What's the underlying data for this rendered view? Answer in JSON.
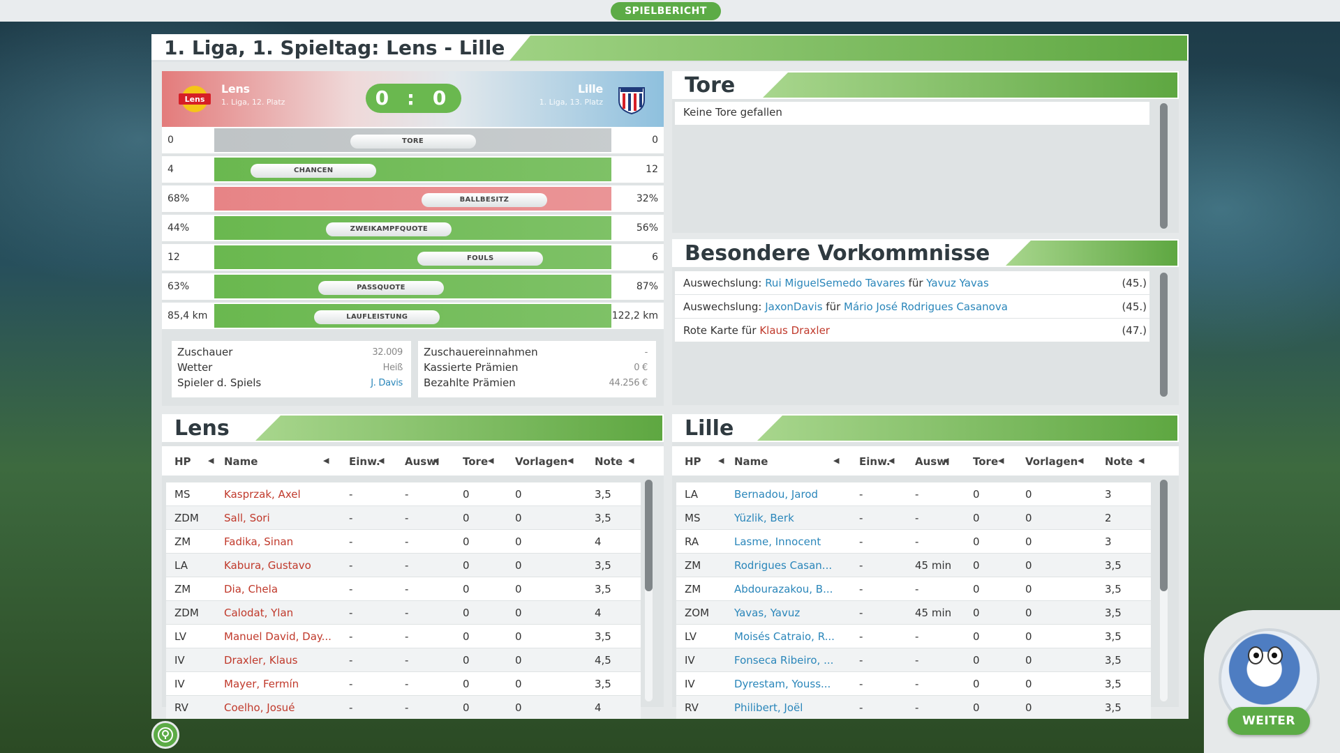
{
  "top_badge": "SPIELBERICHT",
  "title": "1. Liga, 1. Spieltag: Lens - Lille",
  "home": {
    "name": "Lens",
    "sub": "1. Liga, 12. Platz",
    "crest_label": "Lens",
    "color": "#e37b7b"
  },
  "away": {
    "name": "Lille",
    "sub": "1. Liga, 13. Platz",
    "color": "#8ec0de"
  },
  "score": "0 : 0",
  "stats": [
    {
      "label": "TORE",
      "home": "0",
      "away": "0",
      "share": 0.5,
      "color": "#bfc4c6"
    },
    {
      "label": "CHANCEN",
      "home": "4",
      "away": "12",
      "share": 0.25,
      "color": "#6ab84f"
    },
    {
      "label": "BALLBESITZ",
      "home": "68%",
      "away": "32%",
      "share": 0.68,
      "color": "#e78486"
    },
    {
      "label": "ZWEIKAMPFQUOTE",
      "home": "44%",
      "away": "56%",
      "share": 0.44,
      "color": "#6ab84f"
    },
    {
      "label": "FOULS",
      "home": "12",
      "away": "6",
      "share": 0.67,
      "color": "#6ab84f"
    },
    {
      "label": "PASSQUOTE",
      "home": "63%",
      "away": "87%",
      "share": 0.42,
      "color": "#6ab84f"
    },
    {
      "label": "LAUFLEISTUNG",
      "home": "85,4 km",
      "away": "122,2 km",
      "share": 0.41,
      "color": "#6ab84f"
    }
  ],
  "info_left": [
    {
      "label": "Zuschauer",
      "value": "32.009"
    },
    {
      "label": "Wetter",
      "value": "Heiß"
    },
    {
      "label": "Spieler d. Spiels",
      "value": "J. Davis"
    }
  ],
  "info_right": [
    {
      "label": "Zuschauereinnahmen",
      "value": "-"
    },
    {
      "label": "Kassierte Prämien",
      "value": "0 €"
    },
    {
      "label": "Bezahlte Prämien",
      "value": "44.256 €"
    }
  ],
  "goals": {
    "title": "Tore",
    "empty": "Keine Tore gefallen"
  },
  "events": {
    "title": "Besondere Vorkommnisse",
    "items": [
      {
        "prefix": "Auswechslung: ",
        "p1": "Rui MiguelSemedo Tavares",
        "mid": " für ",
        "p2": "Yavuz Yavas",
        "time": "(45.)",
        "link": "blue"
      },
      {
        "prefix": "Auswechslung: ",
        "p1": "JaxonDavis",
        "mid": " für ",
        "p2": "Mário José Rodrigues Casanova",
        "time": "(45.)",
        "link": "blue"
      },
      {
        "prefix": "Rote Karte für ",
        "p1": "Klaus Draxler",
        "mid": "",
        "p2": "",
        "time": "(47.)",
        "link": "red"
      }
    ]
  },
  "table_headers": [
    "HP",
    "Name",
    "Einw.",
    "Ausw.",
    "Tore",
    "Vorlagen",
    "Note"
  ],
  "lens_table": {
    "title": "Lens",
    "rows": [
      [
        "MS",
        "Kasprzak, Axel",
        "-",
        "-",
        "0",
        "0",
        "3,5"
      ],
      [
        "ZDM",
        "Sall, Sori",
        "-",
        "-",
        "0",
        "0",
        "3,5"
      ],
      [
        "ZM",
        "Fadika, Sinan",
        "-",
        "-",
        "0",
        "0",
        "4"
      ],
      [
        "LA",
        "Kabura, Gustavo",
        "-",
        "-",
        "0",
        "0",
        "3,5"
      ],
      [
        "ZM",
        "Dia, Chela",
        "-",
        "-",
        "0",
        "0",
        "3,5"
      ],
      [
        "ZDM",
        "Calodat, Ylan",
        "-",
        "-",
        "0",
        "0",
        "4"
      ],
      [
        "LV",
        "Manuel David, Day...",
        "-",
        "-",
        "0",
        "0",
        "3,5"
      ],
      [
        "IV",
        "Draxler, Klaus",
        "-",
        "-",
        "0",
        "0",
        "4,5"
      ],
      [
        "IV",
        "Mayer, Fermín",
        "-",
        "-",
        "0",
        "0",
        "3,5"
      ],
      [
        "RV",
        "Coelho, Josué",
        "-",
        "-",
        "0",
        "0",
        "4"
      ]
    ]
  },
  "lille_table": {
    "title": "Lille",
    "rows": [
      [
        "LA",
        "Bernadou, Jarod",
        "-",
        "-",
        "0",
        "0",
        "3"
      ],
      [
        "MS",
        "Yüzlik, Berk",
        "-",
        "-",
        "0",
        "0",
        "2"
      ],
      [
        "RA",
        "Lasme, Innocent",
        "-",
        "-",
        "0",
        "0",
        "3"
      ],
      [
        "ZM",
        "Rodrigues Casan...",
        "-",
        "45 min",
        "0",
        "0",
        "3,5"
      ],
      [
        "ZM",
        "Abdourazakou, B...",
        "-",
        "-",
        "0",
        "0",
        "3,5"
      ],
      [
        "ZOM",
        "Yavas, Yavuz",
        "-",
        "45 min",
        "0",
        "0",
        "3,5"
      ],
      [
        "LV",
        "Moisés Catraio, R...",
        "-",
        "-",
        "0",
        "0",
        "3,5"
      ],
      [
        "IV",
        "Fonseca Ribeiro, ...",
        "-",
        "-",
        "0",
        "0",
        "3,5"
      ],
      [
        "IV",
        "Dyrestam, Youss...",
        "-",
        "-",
        "0",
        "0",
        "3,5"
      ],
      [
        "RV",
        "Philibert, Joël",
        "-",
        "-",
        "0",
        "0",
        "3,5"
      ]
    ]
  },
  "continue_label": "WEITER",
  "icons": {
    "sort": "sort-left-arrow-icon",
    "hint": "lightbulb-icon",
    "mascot": "football-mascot-icon"
  }
}
